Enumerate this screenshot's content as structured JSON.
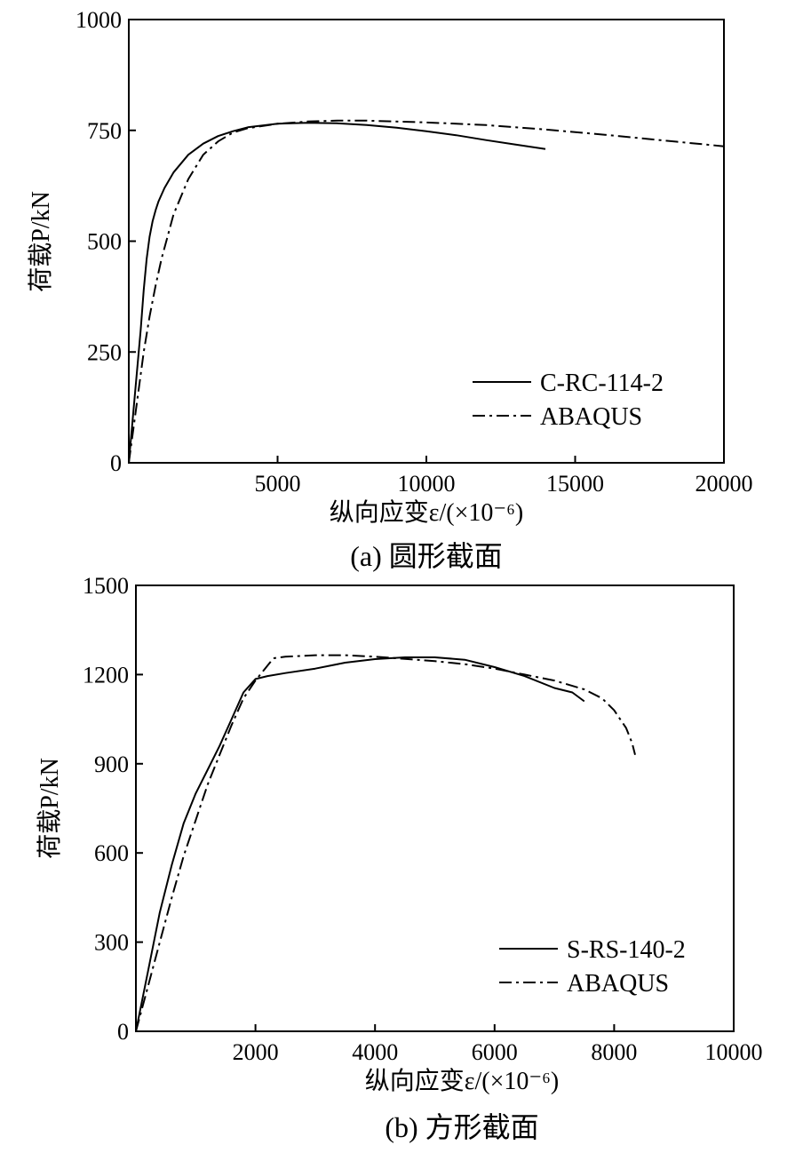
{
  "chart_data": [
    {
      "type": "line",
      "caption": "(a) 圆形截面",
      "xlabel": "纵向应变ε/(×10⁻⁶)",
      "ylabel": "荷载P/kN",
      "xlim": [
        0,
        20000
      ],
      "ylim": [
        0,
        1000
      ],
      "xticks": [
        5000,
        10000,
        15000,
        20000
      ],
      "xtick_labels": [
        "5000",
        "10000",
        "15000",
        "20000"
      ],
      "yticks": [
        0,
        250,
        500,
        750,
        1000
      ],
      "ytick_labels": [
        "0",
        "250",
        "500",
        "750",
        "1000"
      ],
      "grid": false,
      "legend_position": "bottom-right",
      "series": [
        {
          "name": "C-RC-114-2",
          "style": "solid",
          "x": [
            0,
            200,
            400,
            500,
            600,
            700,
            800,
            900,
            1000,
            1200,
            1500,
            2000,
            2500,
            3000,
            3500,
            4000,
            5000,
            6000,
            7000,
            8000,
            9000,
            10000,
            11000,
            12000,
            13000,
            14000
          ],
          "y": [
            0,
            150,
            300,
            390,
            460,
            510,
            545,
            570,
            590,
            620,
            655,
            695,
            720,
            737,
            748,
            757,
            765,
            767,
            766,
            762,
            756,
            748,
            739,
            728,
            718,
            708
          ]
        },
        {
          "name": "ABAQUS",
          "style": "dashdot",
          "x": [
            0,
            300,
            500,
            700,
            900,
            1100,
            1300,
            1500,
            2000,
            2500,
            3000,
            3500,
            4000,
            5000,
            6000,
            7000,
            8000,
            10000,
            12000,
            14000,
            16000,
            18000,
            20000
          ],
          "y": [
            0,
            150,
            250,
            330,
            400,
            460,
            510,
            560,
            640,
            695,
            725,
            745,
            755,
            765,
            770,
            772,
            772,
            768,
            762,
            752,
            740,
            727,
            714
          ]
        }
      ]
    },
    {
      "type": "line",
      "caption": "(b) 方形截面",
      "xlabel": "纵向应变ε/(×10⁻⁶)",
      "ylabel": "荷载P/kN",
      "xlim": [
        0,
        10000
      ],
      "ylim": [
        0,
        1500
      ],
      "xticks": [
        2000,
        4000,
        6000,
        8000,
        10000
      ],
      "xtick_labels": [
        "2000",
        "4000",
        "6000",
        "8000",
        "10000"
      ],
      "yticks": [
        0,
        300,
        600,
        900,
        1200,
        1500
      ],
      "ytick_labels": [
        "0",
        "300",
        "600",
        "900",
        "1200",
        "1500"
      ],
      "grid": false,
      "legend_position": "bottom-right",
      "series": [
        {
          "name": "S-RS-140-2",
          "style": "solid",
          "x": [
            0,
            200,
            400,
            600,
            800,
            1000,
            1200,
            1400,
            1600,
            1800,
            2000,
            2200,
            2500,
            3000,
            3500,
            4000,
            4500,
            5000,
            5500,
            6000,
            6500,
            7000,
            7300,
            7500
          ],
          "y": [
            0,
            200,
            400,
            560,
            700,
            800,
            880,
            960,
            1050,
            1140,
            1185,
            1195,
            1205,
            1220,
            1240,
            1252,
            1258,
            1258,
            1250,
            1225,
            1195,
            1155,
            1140,
            1110
          ]
        },
        {
          "name": "ABAQUS",
          "style": "dashdot",
          "x": [
            0,
            200,
            400,
            600,
            800,
            1000,
            1200,
            1400,
            1600,
            1800,
            2000,
            2200,
            2300,
            2500,
            3000,
            3500,
            4000,
            4500,
            5000,
            5500,
            6000,
            6500,
            7000,
            7500,
            7800,
            8000,
            8200,
            8300,
            8350
          ],
          "y": [
            0,
            150,
            300,
            450,
            590,
            710,
            830,
            930,
            1030,
            1120,
            1180,
            1230,
            1255,
            1260,
            1265,
            1265,
            1260,
            1253,
            1245,
            1235,
            1220,
            1200,
            1180,
            1150,
            1120,
            1080,
            1020,
            970,
            930
          ]
        }
      ]
    }
  ]
}
